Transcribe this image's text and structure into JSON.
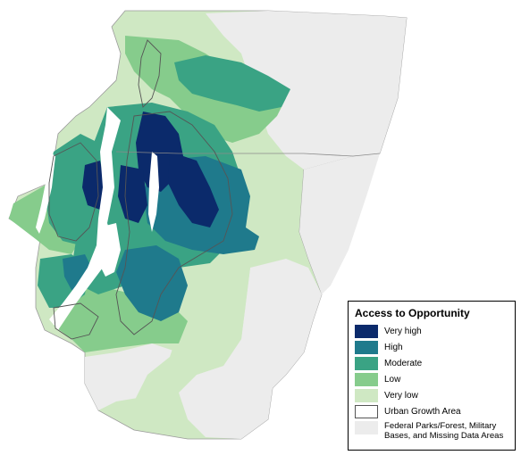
{
  "legend": {
    "title": "Access to Opportunity",
    "items": [
      {
        "label": "Very high",
        "color": "#0b2a6b"
      },
      {
        "label": "High",
        "color": "#1f7a8c"
      },
      {
        "label": "Moderate",
        "color": "#3aa384"
      },
      {
        "label": "Low",
        "color": "#86cc8c"
      },
      {
        "label": "Very low",
        "color": "#cfe8c3"
      },
      {
        "label": "Urban Growth Area",
        "color": "#555555"
      },
      {
        "label": "Federal Parks/Forest, Military Bases, and Missing Data Areas",
        "color": "#ececec"
      }
    ]
  },
  "colors": {
    "water": "#ffffff",
    "federal_gray": "#ececec",
    "boundary": "#888888"
  }
}
